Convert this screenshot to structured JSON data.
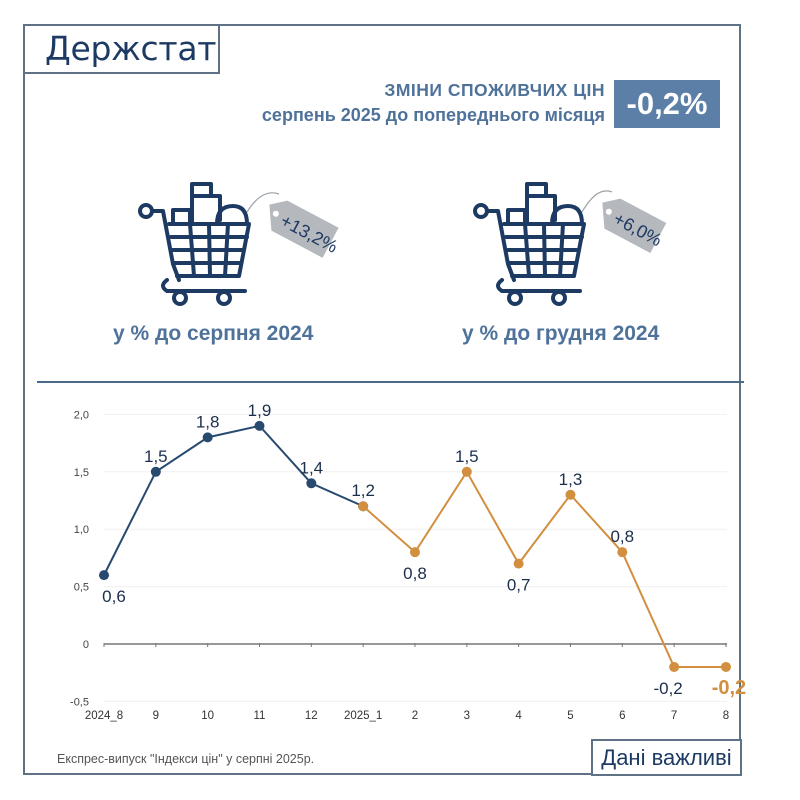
{
  "header": {
    "logo": "Держстат",
    "title": "ЗМІНИ СПОЖИВЧИХ ЦІН",
    "subtitle": "серпень 2025 до попереднього місяця",
    "headline_value": "-0,2%"
  },
  "kpis": [
    {
      "icon": "shopping-cart-icon",
      "tag_value": "+13,2%",
      "caption": "у % до серпня 2024"
    },
    {
      "icon": "shopping-cart-icon",
      "tag_value": "+6,0%",
      "caption": "у % до грудня 2024"
    }
  ],
  "colors": {
    "primary": "#1d3a63",
    "accent_blue": "#4f729a",
    "badge": "#5b7fa6",
    "series_2024": "#284a6f",
    "series_2025": "#d18f3f",
    "tag_gray": "#b5b8bd"
  },
  "chart_data": {
    "type": "line",
    "title": "",
    "xlabel": "",
    "ylabel": "",
    "categories": [
      "2024_8",
      "9",
      "10",
      "11",
      "12",
      "2025_1",
      "2",
      "3",
      "4",
      "5",
      "6",
      "7",
      "8"
    ],
    "series": [
      {
        "name": "2024",
        "values": [
          0.6,
          1.5,
          1.8,
          1.9,
          1.4,
          1.2,
          null,
          null,
          null,
          null,
          null,
          null,
          null
        ],
        "color": "#284a6f"
      },
      {
        "name": "2025",
        "values": [
          null,
          null,
          null,
          null,
          null,
          1.2,
          0.8,
          1.5,
          0.7,
          1.3,
          0.8,
          -0.2,
          -0.2
        ],
        "color": "#d18f3f"
      }
    ],
    "data_labels": [
      "0,6",
      "1,5",
      "1,8",
      "1,9",
      "1,4",
      "1,2",
      "0,8",
      "1,5",
      "0,7",
      "1,3",
      "0,8",
      "-0,2",
      "-0,2"
    ],
    "y_ticks": [
      "2,0",
      "1,5",
      "1,0",
      "0,5",
      "0",
      "-0,5"
    ],
    "ylim": [
      -0.5,
      2.0
    ],
    "grid": true,
    "legend": "none"
  },
  "footer": {
    "source": "Експрес-випуск \"Індекси цін\" у серпні 2025р.",
    "slogan": "Дані важливі"
  }
}
